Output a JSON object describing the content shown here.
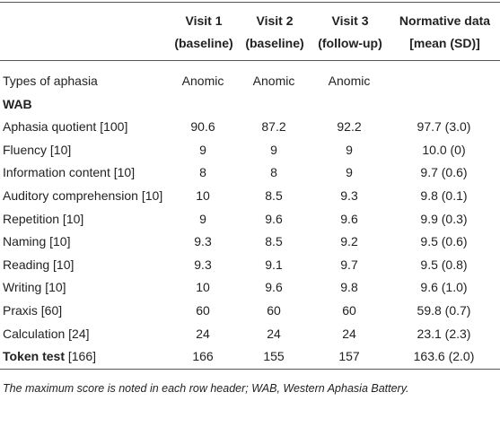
{
  "table": {
    "columns": [
      [
        "Visit 1",
        "(baseline)"
      ],
      [
        "Visit 2",
        "(baseline)"
      ],
      [
        "Visit 3",
        "(follow-up)"
      ],
      [
        "Normative data",
        "[mean (SD)]"
      ]
    ],
    "rows": [
      {
        "label": "Types of aphasia",
        "cells": [
          "Anomic",
          "Anomic",
          "Anomic"
        ]
      },
      {
        "section": "WAB"
      },
      {
        "label": "Aphasia quotient [100]",
        "cells": [
          "90.6",
          "87.2",
          "92.2",
          "97.7 (3.0)"
        ]
      },
      {
        "label": "Fluency [10]",
        "cells": [
          "9",
          "9",
          "9",
          "10.0 (0)"
        ]
      },
      {
        "label": "Information content [10]",
        "cells": [
          "8",
          "8",
          "9",
          "9.7 (0.6)"
        ]
      },
      {
        "label": "Auditory comprehension [10]",
        "cells": [
          "10",
          "8.5",
          "9.3",
          "9.8 (0.1)"
        ]
      },
      {
        "label": "Repetition [10]",
        "cells": [
          "9",
          "9.6",
          "9.6",
          "9.9 (0.3)"
        ]
      },
      {
        "label": "Naming [10]",
        "cells": [
          "9.3",
          "8.5",
          "9.2",
          "9.5 (0.6)"
        ]
      },
      {
        "label": "Reading [10]",
        "cells": [
          "9.3",
          "9.1",
          "9.7",
          "9.5 (0.8)"
        ]
      },
      {
        "label": "Writing [10]",
        "cells": [
          "10",
          "9.6",
          "9.8",
          "9.6 (1.0)"
        ]
      },
      {
        "label": "Praxis [60]",
        "cells": [
          "60",
          "60",
          "60",
          "59.8 (0.7)"
        ]
      },
      {
        "label": "Calculation [24]",
        "cells": [
          "24",
          "24",
          "24",
          "23.1 (2.3)"
        ]
      },
      {
        "bold_label": "Token test",
        "max": "[166]",
        "cells": [
          "166",
          "155",
          "157",
          "163.6 (2.0)"
        ]
      }
    ],
    "footnote": "The maximum score is noted in each row header; WAB, Western Aphasia Battery."
  }
}
